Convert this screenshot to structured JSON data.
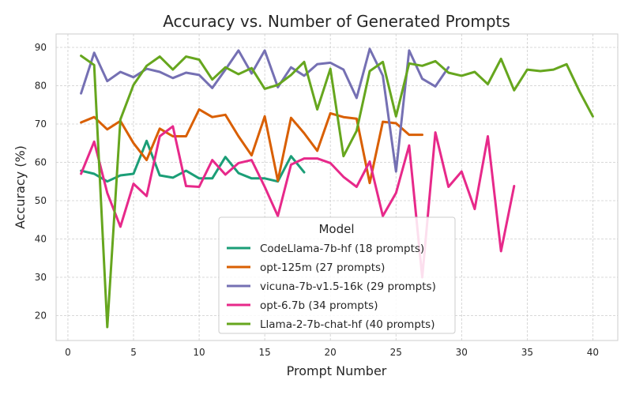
{
  "chart_data": {
    "type": "line",
    "title": "Accuracy vs. Number of Generated Prompts",
    "xlabel": "Prompt Number",
    "ylabel": "Accuracy (%)",
    "xlim": [
      -0.9,
      41.9
    ],
    "ylim": [
      13.5,
      93.5
    ],
    "xticks": [
      0,
      5,
      10,
      15,
      20,
      25,
      30,
      35,
      40
    ],
    "yticks": [
      20,
      30,
      40,
      50,
      60,
      70,
      80,
      90
    ],
    "grid": true,
    "legend": {
      "title": "Model",
      "placement": "lower-center"
    },
    "series": [
      {
        "name": "CodeLlama-7b-hf (18 prompts)",
        "color": "#1b9e77",
        "x": [
          1,
          2,
          3,
          4,
          5,
          6,
          7,
          8,
          9,
          10,
          11,
          12,
          13,
          14,
          15,
          16,
          17,
          18
        ],
        "values": [
          57.8,
          57.0,
          55.0,
          56.6,
          57.0,
          65.6,
          56.6,
          56.0,
          57.8,
          55.8,
          55.8,
          61.4,
          57.2,
          55.8,
          55.8,
          55.0,
          61.6,
          57.4
        ]
      },
      {
        "name": "opt-125m (27 prompts)",
        "color": "#d95f02",
        "x": [
          1,
          2,
          3,
          4,
          5,
          6,
          7,
          8,
          9,
          10,
          11,
          12,
          13,
          14,
          15,
          16,
          17,
          18,
          19,
          20,
          21,
          22,
          23,
          24,
          25,
          26,
          27
        ],
        "values": [
          70.4,
          71.8,
          68.6,
          70.8,
          65.0,
          60.6,
          68.8,
          66.8,
          66.8,
          73.8,
          71.8,
          72.4,
          66.8,
          61.8,
          72.0,
          55.2,
          71.6,
          67.6,
          63.0,
          72.8,
          71.8,
          71.4,
          54.6,
          70.6,
          70.2,
          67.2,
          67.2
        ]
      },
      {
        "name": "vicuna-7b-v1.5-16k (29 prompts)",
        "color": "#7570b3",
        "x": [
          1,
          2,
          3,
          4,
          5,
          6,
          7,
          8,
          9,
          10,
          11,
          12,
          13,
          14,
          15,
          16,
          17,
          18,
          19,
          20,
          21,
          22,
          23,
          24,
          25,
          26,
          27,
          28,
          29
        ],
        "values": [
          78.0,
          88.6,
          81.2,
          83.6,
          82.2,
          84.4,
          83.6,
          82.0,
          83.4,
          82.8,
          79.4,
          84.2,
          89.2,
          83.2,
          89.2,
          79.6,
          84.8,
          82.6,
          85.6,
          86.0,
          84.2,
          76.8,
          89.6,
          82.6,
          57.6,
          89.2,
          81.8,
          79.8,
          84.8
        ]
      },
      {
        "name": "opt-6.7b (34 prompts)",
        "color": "#e7298a",
        "x": [
          1,
          2,
          3,
          4,
          5,
          6,
          7,
          8,
          9,
          10,
          11,
          12,
          13,
          14,
          15,
          16,
          17,
          18,
          19,
          20,
          21,
          22,
          23,
          24,
          25,
          26,
          27,
          28,
          29,
          30,
          31,
          32,
          33,
          34
        ],
        "values": [
          57.0,
          65.4,
          52.0,
          43.2,
          54.4,
          51.2,
          66.8,
          69.4,
          53.8,
          53.6,
          60.6,
          56.8,
          59.8,
          60.6,
          53.6,
          46.0,
          59.4,
          61.0,
          61.0,
          59.8,
          56.2,
          53.6,
          60.2,
          46.0,
          52.0,
          64.4,
          30.0,
          67.8,
          53.6,
          57.6,
          47.8,
          66.8,
          36.8,
          53.8
        ]
      },
      {
        "name": "Llama-2-7b-chat-hf (40 prompts)",
        "color": "#66a61e",
        "x": [
          1,
          2,
          3,
          4,
          5,
          6,
          7,
          8,
          9,
          10,
          11,
          12,
          13,
          14,
          15,
          16,
          17,
          18,
          19,
          20,
          21,
          22,
          23,
          24,
          25,
          26,
          27,
          28,
          29,
          30,
          31,
          32,
          33,
          34,
          35,
          36,
          37,
          38,
          39,
          40
        ],
        "values": [
          87.8,
          85.4,
          17.0,
          71.2,
          80.2,
          85.2,
          87.6,
          84.2,
          87.6,
          86.8,
          81.6,
          84.8,
          83.0,
          84.6,
          79.2,
          80.2,
          82.8,
          86.2,
          73.8,
          84.4,
          61.6,
          68.2,
          83.8,
          86.2,
          72.0,
          85.8,
          85.2,
          86.4,
          83.4,
          82.6,
          83.6,
          80.4,
          87.0,
          78.8,
          84.2,
          83.8,
          84.2,
          85.6,
          78.4,
          72.0
        ]
      }
    ]
  }
}
